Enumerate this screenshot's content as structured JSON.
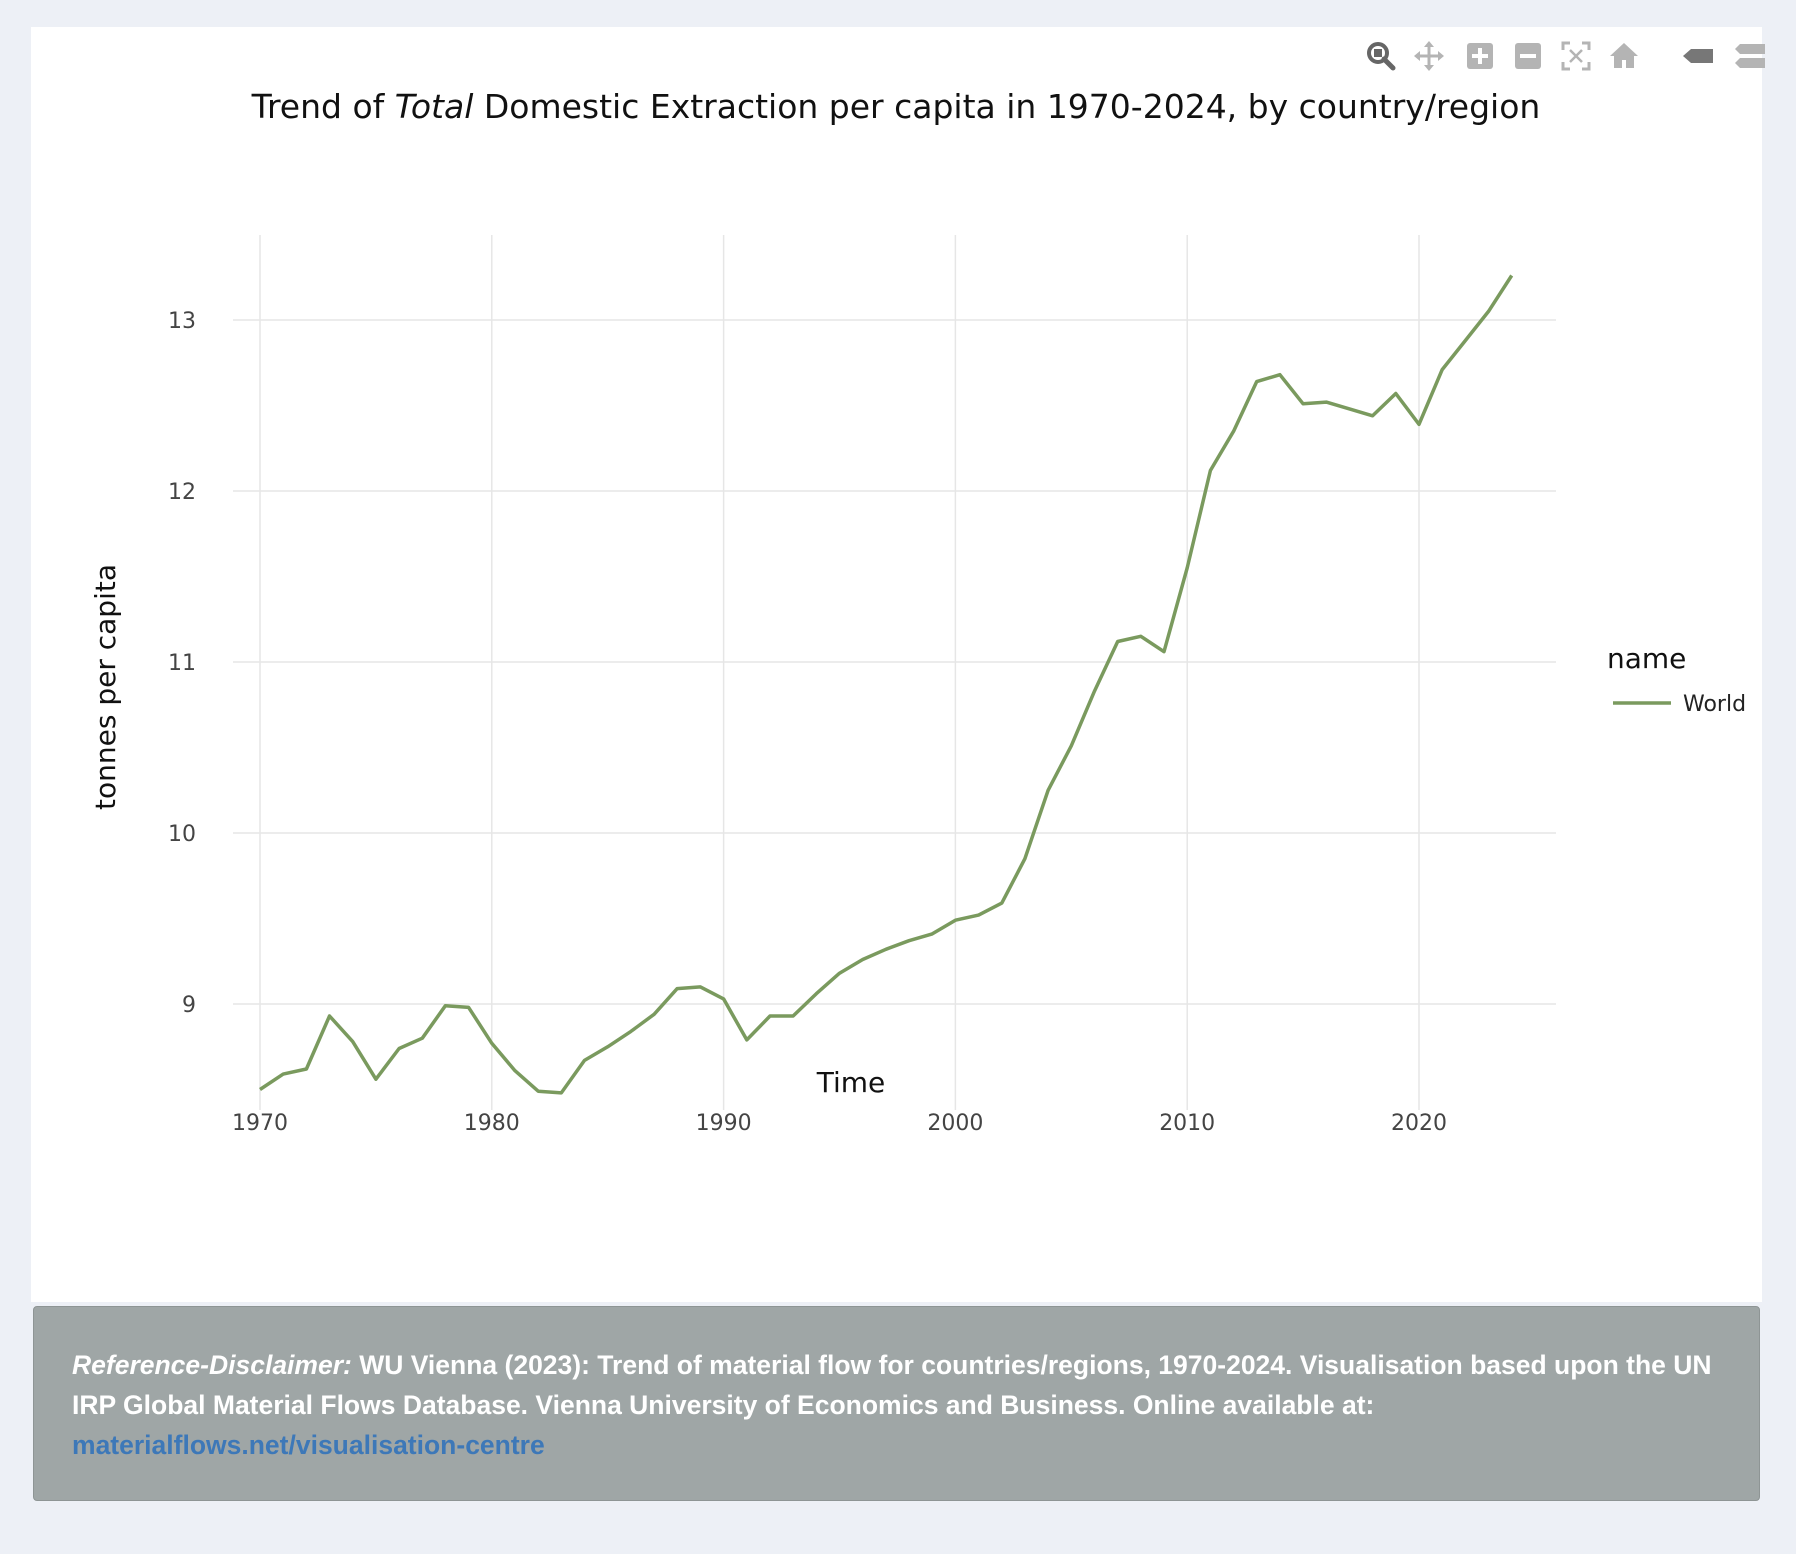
{
  "toolbar": {
    "buttons": [
      {
        "name": "zoom-icon",
        "title": "Zoom"
      },
      {
        "name": "pan-icon",
        "title": "Pan"
      },
      {
        "name": "zoom-in-icon",
        "title": "Zoom in"
      },
      {
        "name": "zoom-out-icon",
        "title": "Zoom out"
      },
      {
        "name": "autoscale-icon",
        "title": "Autoscale"
      },
      {
        "name": "home-icon",
        "title": "Reset axes"
      },
      {
        "name": "hover-closest-icon",
        "title": "Show closest data on hover"
      },
      {
        "name": "hover-compare-icon",
        "title": "Compare data on hover"
      }
    ]
  },
  "chart_data": {
    "type": "line",
    "title_parts": {
      "before": "Trend of ",
      "italic": "Total",
      "after": " Domestic Extraction per capita in 1970-2024, by country/region"
    },
    "xlabel": "Time",
    "ylabel": "tonnes per capita",
    "xlim": [
      1970,
      2026.8
    ],
    "ylim": [
      8.33,
      13.5
    ],
    "xticks": [
      1970,
      1980,
      1990,
      2000,
      2010,
      2020
    ],
    "yticks": [
      9,
      10,
      11,
      12,
      13
    ],
    "grid": true,
    "legend": {
      "title": "name",
      "placement": "right"
    },
    "series": [
      {
        "name": "World",
        "color": "#7a9a5e",
        "x": [
          1970,
          1971,
          1972,
          1973,
          1974,
          1975,
          1976,
          1977,
          1978,
          1979,
          1980,
          1981,
          1982,
          1983,
          1984,
          1985,
          1986,
          1987,
          1988,
          1989,
          1990,
          1991,
          1992,
          1993,
          1994,
          1995,
          1996,
          1997,
          1998,
          1999,
          2000,
          2001,
          2002,
          2003,
          2004,
          2005,
          2006,
          2007,
          2008,
          2009,
          2010,
          2011,
          2012,
          2013,
          2014,
          2015,
          2016,
          2017,
          2018,
          2019,
          2020,
          2021,
          2022,
          2023,
          2024
        ],
        "y": [
          8.5,
          8.59,
          8.62,
          8.93,
          8.78,
          8.56,
          8.74,
          8.8,
          8.99,
          8.98,
          8.77,
          8.61,
          8.49,
          8.48,
          8.67,
          8.75,
          8.84,
          8.94,
          9.09,
          9.1,
          9.03,
          8.79,
          8.93,
          8.93,
          9.06,
          9.18,
          9.26,
          9.32,
          9.37,
          9.41,
          9.49,
          9.52,
          9.59,
          9.85,
          10.25,
          10.51,
          10.83,
          11.12,
          11.15,
          11.06,
          11.55,
          12.12,
          12.35,
          12.64,
          12.68,
          12.51,
          12.52,
          12.48,
          12.44,
          12.57,
          12.39,
          12.71,
          12.88,
          13.05,
          13.26
        ]
      }
    ]
  },
  "disclaimer": {
    "lead": "Reference-Disclaimer:",
    "body": " WU Vienna (2023): Trend of material flow for countries/regions, 1970-2024. Visualisation based upon the UN IRP Global Material Flows Database. Vienna University of Economics and Business. Online available at:",
    "link": "materialflows.net/visualisation-centre"
  }
}
